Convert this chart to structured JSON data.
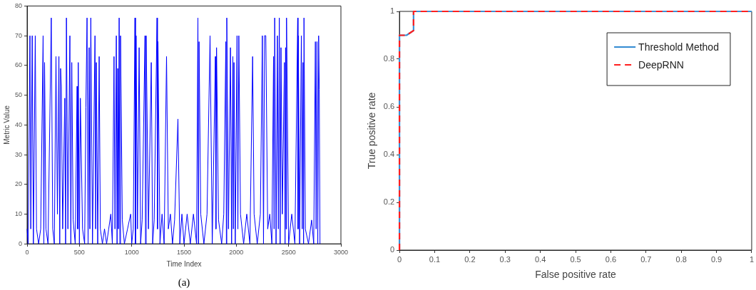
{
  "chart_data": [
    {
      "type": "line",
      "xlabel": "Time Index",
      "ylabel": "Metric Value",
      "annotations": [
        "(a)"
      ],
      "xlim": [
        0,
        3000
      ],
      "xticks": [
        0,
        500,
        1000,
        1500,
        2000,
        2500,
        3000
      ],
      "ylim": [
        0,
        80
      ],
      "yticks": [
        0,
        10,
        20,
        30,
        40,
        50,
        60,
        70,
        80
      ],
      "grid": false,
      "legend": false,
      "marker": "none",
      "line_style": "solid",
      "x": [
        0,
        10,
        27,
        35,
        49,
        60,
        78,
        90,
        110,
        130,
        153,
        160,
        167,
        180,
        200,
        231,
        245,
        260,
        276,
        290,
        304,
        312,
        320,
        327,
        340,
        360,
        368,
        376,
        390,
        409,
        418,
        427,
        440,
        460,
        478,
        484,
        489,
        500,
        509,
        530,
        550,
        562,
        573,
        583,
        593,
        600,
        609,
        625,
        649,
        655,
        662,
        675,
        689,
        700,
        720,
        740,
        760,
        780,
        800,
        815,
        831,
        840,
        853,
        860,
        867,
        873,
        880,
        887,
        893,
        910,
        930,
        960,
        990,
        1000,
        1015,
        1031,
        1036,
        1042,
        1055,
        1071,
        1085,
        1100,
        1127,
        1132,
        1138,
        1160,
        1187,
        1200,
        1215,
        1242,
        1246,
        1251,
        1270,
        1290,
        1310,
        1333,
        1350,
        1370,
        1390,
        1410,
        1442,
        1460,
        1480,
        1500,
        1530,
        1560,
        1590,
        1620,
        1633,
        1638,
        1644,
        1660,
        1690,
        1720,
        1749,
        1770,
        1800,
        1805,
        1811,
        1830,
        1860,
        1880,
        1900,
        1905,
        1909,
        1925,
        1944,
        1955,
        1967,
        1972,
        1978,
        1990,
        2007,
        2015,
        2024,
        2040,
        2070,
        2100,
        2130,
        2156,
        2170,
        2200,
        2230,
        2249,
        2260,
        2270,
        2282,
        2300,
        2320,
        2340,
        2356,
        2361,
        2367,
        2380,
        2393,
        2402,
        2411,
        2419,
        2427,
        2440,
        2460,
        2466,
        2471,
        2476,
        2480,
        2500,
        2530,
        2560,
        2587,
        2590,
        2593,
        2605,
        2622,
        2630,
        2638,
        2643,
        2647,
        2660,
        2690,
        2720,
        2740,
        2756,
        2763,
        2771,
        2779,
        2787,
        2793,
        2800
      ],
      "series": [
        {
          "color": "#0000ff",
          "values": [
            5,
            0,
            70,
            5,
            70,
            0,
            70,
            5,
            0,
            5,
            70,
            0,
            61,
            5,
            0,
            76,
            5,
            0,
            63,
            10,
            63,
            0,
            59,
            53,
            5,
            49,
            0,
            76,
            5,
            70,
            0,
            61,
            8,
            0,
            53,
            5,
            61,
            0,
            49,
            5,
            0,
            46,
            76,
            0,
            66,
            5,
            76,
            0,
            70,
            5,
            61,
            0,
            63,
            5,
            0,
            5,
            0,
            5,
            10,
            0,
            63,
            5,
            70,
            0,
            59,
            5,
            76,
            0,
            70,
            8,
            0,
            5,
            10,
            0,
            5,
            76,
            0,
            70,
            5,
            66,
            0,
            8,
            70,
            0,
            70,
            5,
            61,
            0,
            8,
            76,
            5,
            68,
            0,
            10,
            0,
            63,
            5,
            10,
            0,
            8,
            42,
            0,
            10,
            0,
            10,
            0,
            10,
            0,
            76,
            0,
            68,
            10,
            0,
            10,
            70,
            0,
            63,
            5,
            66,
            8,
            0,
            10,
            68,
            0,
            76,
            5,
            66,
            0,
            63,
            5,
            61,
            0,
            70,
            5,
            70,
            10,
            0,
            10,
            0,
            63,
            10,
            0,
            10,
            70,
            0,
            70,
            70,
            5,
            10,
            0,
            63,
            5,
            76,
            0,
            70,
            5,
            76,
            0,
            66,
            10,
            61,
            0,
            66,
            5,
            76,
            0,
            10,
            0,
            76,
            5,
            70,
            0,
            70,
            5,
            61,
            0,
            76,
            5,
            0,
            8,
            0,
            68,
            5,
            68,
            0,
            70,
            52,
            0
          ]
        }
      ]
    },
    {
      "type": "line",
      "xlabel": "False positive rate",
      "ylabel": "True positive rate",
      "xlim": [
        0,
        1
      ],
      "xticks": [
        0,
        0.1,
        0.2,
        0.3,
        0.4,
        0.5,
        0.6,
        0.7,
        0.8,
        0.9,
        1
      ],
      "ylim": [
        0,
        1
      ],
      "yticks": [
        0,
        0.2,
        0.4,
        0.6,
        0.8,
        1
      ],
      "grid": false,
      "legend": "top right",
      "marker": "none",
      "x": [
        0,
        0,
        0.02,
        0.04,
        0.04,
        1
      ],
      "series": [
        {
          "name": "Threshold Method",
          "color": "#3b8fd4",
          "line_style": "solid",
          "values": [
            0,
            0.9,
            0.9,
            0.92,
            1,
            1
          ]
        },
        {
          "name": "DeepRNN",
          "color": "#ff1f1f",
          "line_style": "dashed",
          "values": [
            0,
            0.9,
            0.9,
            0.92,
            1,
            1
          ]
        }
      ]
    }
  ]
}
